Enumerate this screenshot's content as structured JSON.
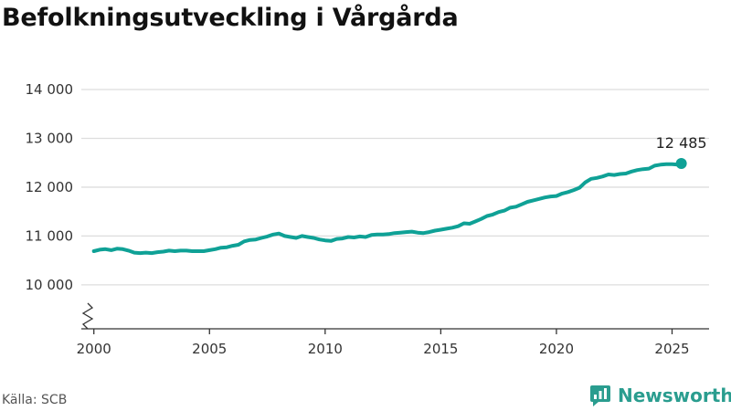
{
  "title": "Befolkningsutveckling i Vårgårda",
  "source": "Källa: SCB",
  "brand": "Newsworthy",
  "colors": {
    "line": "#0fa196",
    "grid": "#dddddd",
    "axis": "#333333",
    "brand": "#2a9d8f"
  },
  "chart_data": {
    "type": "line",
    "title": "Befolkningsutveckling i Vårgårda",
    "xlabel": "",
    "ylabel": "",
    "x_ticks": [
      2000,
      2005,
      2010,
      2015,
      2020,
      2025
    ],
    "y_ticks": [
      10000,
      11000,
      12000,
      13000,
      14000
    ],
    "y_tick_labels": [
      "10 000",
      "11 000",
      "12 000",
      "13 000",
      "14 000"
    ],
    "xlim": [
      1999.3,
      2026.6
    ],
    "ylim": [
      9100,
      14000
    ],
    "y_axis_break": true,
    "grid": "horizontal",
    "end_label": "12 485",
    "series": [
      {
        "x": [
          2000.0,
          2000.25,
          2000.5,
          2000.75,
          2001.0,
          2001.25,
          2001.5,
          2001.75,
          2002.0,
          2002.25,
          2002.5,
          2002.75,
          2003.0,
          2003.25,
          2003.5,
          2003.75,
          2004.0,
          2004.25,
          2004.5,
          2004.75,
          2005.0,
          2005.25,
          2005.5,
          2005.75,
          2006.0,
          2006.25,
          2006.5,
          2006.75,
          2007.0,
          2007.25,
          2007.5,
          2007.75,
          2008.0,
          2008.25,
          2008.5,
          2008.75,
          2009.0,
          2009.25,
          2009.5,
          2009.75,
          2010.0,
          2010.25,
          2010.5,
          2010.75,
          2011.0,
          2011.25,
          2011.5,
          2011.75,
          2012.0,
          2012.25,
          2012.5,
          2012.75,
          2013.0,
          2013.25,
          2013.5,
          2013.75,
          2014.0,
          2014.25,
          2014.5,
          2014.75,
          2015.0,
          2015.25,
          2015.5,
          2015.75,
          2016.0,
          2016.25,
          2016.5,
          2016.75,
          2017.0,
          2017.25,
          2017.5,
          2017.75,
          2018.0,
          2018.25,
          2018.5,
          2018.75,
          2019.0,
          2019.25,
          2019.5,
          2019.75,
          2020.0,
          2020.25,
          2020.5,
          2020.75,
          2021.0,
          2021.25,
          2021.5,
          2021.75,
          2022.0,
          2022.25,
          2022.5,
          2022.75,
          2023.0,
          2023.25,
          2023.5,
          2023.75,
          2024.0,
          2024.25,
          2024.5,
          2024.75,
          2025.0,
          2025.25,
          2025.4
        ],
        "y": [
          10690,
          10720,
          10730,
          10710,
          10740,
          10730,
          10700,
          10660,
          10650,
          10660,
          10650,
          10670,
          10680,
          10700,
          10690,
          10700,
          10700,
          10690,
          10690,
          10690,
          10710,
          10730,
          10760,
          10770,
          10800,
          10820,
          10890,
          10920,
          10930,
          10960,
          10990,
          11030,
          11050,
          11000,
          10980,
          10960,
          11000,
          10980,
          10960,
          10930,
          10910,
          10900,
          10940,
          10950,
          10980,
          10970,
          10990,
          10980,
          11020,
          11030,
          11030,
          11040,
          11060,
          11070,
          11080,
          11090,
          11070,
          11060,
          11080,
          11110,
          11130,
          11150,
          11170,
          11200,
          11260,
          11250,
          11300,
          11350,
          11410,
          11440,
          11490,
          11520,
          11580,
          11600,
          11650,
          11700,
          11730,
          11760,
          11790,
          11810,
          11820,
          11870,
          11900,
          11940,
          11990,
          12100,
          12170,
          12190,
          12220,
          12260,
          12250,
          12270,
          12280,
          12320,
          12350,
          12370,
          12380,
          12440,
          12460,
          12470,
          12470,
          12460,
          12485
        ]
      }
    ]
  }
}
